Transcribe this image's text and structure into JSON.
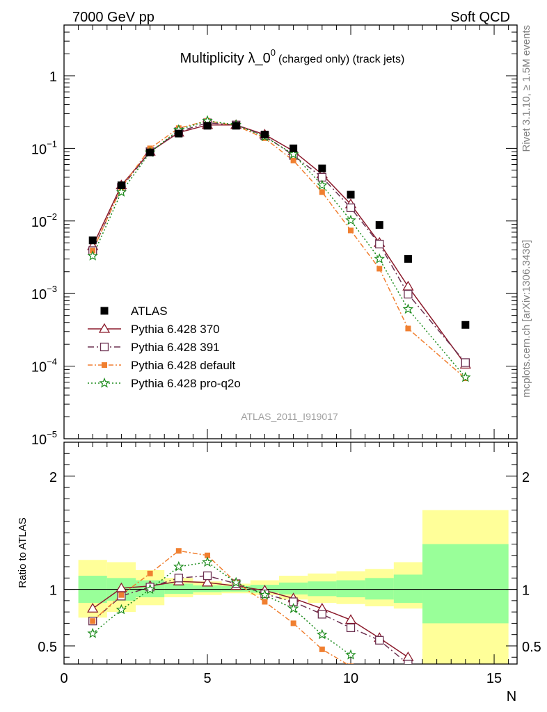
{
  "header": {
    "left": "7000 GeV pp",
    "right": "Soft QCD"
  },
  "side_labels": {
    "top": "Rivet 3.1.10, ≥ 1.5M events",
    "bottom": "mcplots.cern.ch [arXiv:1306.3436]"
  },
  "chart_data": [
    {
      "type": "line",
      "panel": "main",
      "title": "Multiplicity λ_0",
      "title_sup": "0",
      "title_suffix": "(charged only) (track jets)",
      "watermark": "ATLAS_2011_I919017",
      "xlim": [
        0,
        15.8
      ],
      "ylim": [
        1e-05,
        5
      ],
      "yscale": "log",
      "ytick_labels": [
        {
          "v": 1,
          "base": "1",
          "exp": ""
        },
        {
          "v": 0.1,
          "base": "10",
          "exp": "−1"
        },
        {
          "v": 0.01,
          "base": "10",
          "exp": "−2"
        },
        {
          "v": 0.001,
          "base": "10",
          "exp": "−3"
        },
        {
          "v": 0.0001,
          "base": "10",
          "exp": "−4"
        },
        {
          "v": 1e-05,
          "base": "10",
          "exp": "−5"
        }
      ],
      "legend_placement": "lower-left",
      "series": [
        {
          "name": "ATLAS",
          "kind": "data",
          "color": "#000000",
          "marker": "square",
          "x": [
            1,
            2,
            3,
            4,
            5,
            6,
            7,
            8,
            9,
            10,
            11,
            12,
            14
          ],
          "y": [
            0.0054,
            0.031,
            0.088,
            0.16,
            0.205,
            0.205,
            0.155,
            0.1,
            0.053,
            0.023,
            0.0088,
            0.003,
            0.00037
          ]
        },
        {
          "name": "Pythia 6.428 370",
          "kind": "mc",
          "color": "#8b1a2b",
          "marker": "triangle",
          "dash": "",
          "x": [
            1,
            2,
            3,
            4,
            5,
            6,
            7,
            8,
            9,
            10,
            11,
            12,
            14
          ],
          "y": [
            0.0045,
            0.031,
            0.09,
            0.165,
            0.21,
            0.21,
            0.155,
            0.092,
            0.044,
            0.017,
            0.005,
            0.00125,
            0.000105
          ]
        },
        {
          "name": "Pythia 6.428 391",
          "kind": "mc",
          "color": "#6b3050",
          "marker": "open-square",
          "dash": "9,4,2,4",
          "x": [
            1,
            2,
            3,
            4,
            5,
            6,
            7,
            8,
            9,
            10,
            11,
            12,
            14
          ],
          "y": [
            0.0039,
            0.029,
            0.09,
            0.17,
            0.225,
            0.21,
            0.15,
            0.08,
            0.04,
            0.0152,
            0.0048,
            0.00098,
            0.000112
          ]
        },
        {
          "name": "Pythia 6.428 default",
          "kind": "mc",
          "color": "#f07f30",
          "marker": "filled-square",
          "dash": "7,3,2,3",
          "x": [
            1,
            2,
            3,
            4,
            5,
            6,
            7,
            8,
            9,
            10,
            11,
            12,
            14
          ],
          "y": [
            0.0039,
            0.029,
            0.1,
            0.19,
            0.24,
            0.205,
            0.138,
            0.068,
            0.025,
            0.0074,
            0.0022,
            0.00033,
            6.8e-05
          ]
        },
        {
          "name": "Pythia 6.428 pro-q2o",
          "kind": "mc",
          "color": "#1a8a1a",
          "marker": "star",
          "dash": "2,3",
          "x": [
            1,
            2,
            3,
            4,
            5,
            6,
            7,
            8,
            9,
            10,
            11,
            12,
            14
          ],
          "y": [
            0.0033,
            0.025,
            0.088,
            0.18,
            0.24,
            0.21,
            0.145,
            0.083,
            0.031,
            0.0102,
            0.003,
            0.00061,
            7e-05
          ]
        }
      ]
    },
    {
      "type": "line",
      "panel": "ratio",
      "ylabel": "Ratio to ATLAS",
      "xlabel": "N",
      "xlim": [
        0,
        15.8
      ],
      "ylim": [
        0.34,
        2.3
      ],
      "xtick_labels": [
        "0",
        "5",
        "10",
        "15"
      ],
      "ytick_labels": [
        "0.5",
        "1",
        "2"
      ],
      "bands": {
        "bins": [
          [
            0.5,
            1.5
          ],
          [
            1.5,
            2.5
          ],
          [
            2.5,
            3.5
          ],
          [
            3.5,
            4.5
          ],
          [
            4.5,
            5.5
          ],
          [
            5.5,
            6.5
          ],
          [
            6.5,
            7.5
          ],
          [
            7.5,
            8.5
          ],
          [
            8.5,
            9.5
          ],
          [
            9.5,
            10.5
          ],
          [
            10.5,
            11.5
          ],
          [
            11.5,
            12.5
          ],
          [
            12.5,
            15.5
          ]
        ],
        "green_lo": [
          0.88,
          0.9,
          0.93,
          0.96,
          0.975,
          0.98,
          0.97,
          0.955,
          0.94,
          0.93,
          0.91,
          0.88,
          0.7
        ],
        "green_hi": [
          1.12,
          1.1,
          1.08,
          1.05,
          1.035,
          1.03,
          1.04,
          1.06,
          1.07,
          1.08,
          1.1,
          1.13,
          1.4
        ],
        "yellow_lo": [
          0.75,
          0.8,
          0.86,
          0.93,
          0.95,
          0.965,
          0.95,
          0.91,
          0.88,
          0.87,
          0.85,
          0.83,
          0.1
        ],
        "yellow_hi": [
          1.26,
          1.24,
          1.17,
          1.1,
          1.07,
          1.05,
          1.08,
          1.12,
          1.14,
          1.16,
          1.18,
          1.24,
          1.7
        ]
      },
      "series": [
        {
          "name": "Pythia 6.428 370",
          "x": [
            1,
            2,
            3,
            4,
            5,
            6,
            7,
            8,
            9,
            10,
            11,
            12
          ],
          "y": [
            0.83,
            1.01,
            1.03,
            1.07,
            1.06,
            1.03,
            0.99,
            0.92,
            0.83,
            0.73,
            0.57,
            0.4
          ]
        },
        {
          "name": "Pythia 6.428 391",
          "x": [
            1,
            2,
            3,
            4,
            5,
            6,
            7,
            8,
            9,
            10,
            11,
            12
          ],
          "y": [
            0.72,
            0.94,
            1.02,
            1.1,
            1.12,
            1.05,
            0.96,
            0.89,
            0.78,
            0.66,
            0.55,
            0.34
          ]
        },
        {
          "name": "Pythia 6.428 default",
          "x": [
            1,
            2,
            3,
            4,
            5,
            6,
            7,
            8,
            9,
            10
          ],
          "y": [
            0.72,
            0.95,
            1.14,
            1.34,
            1.3,
            1.06,
            0.89,
            0.7,
            0.47,
            0.32
          ]
        },
        {
          "name": "Pythia 6.428 pro-q2o",
          "x": [
            1,
            2,
            3,
            4,
            5,
            6,
            7,
            8,
            9,
            10
          ],
          "y": [
            0.61,
            0.82,
            1.0,
            1.2,
            1.24,
            1.06,
            0.95,
            0.83,
            0.6,
            0.42
          ]
        }
      ]
    }
  ]
}
